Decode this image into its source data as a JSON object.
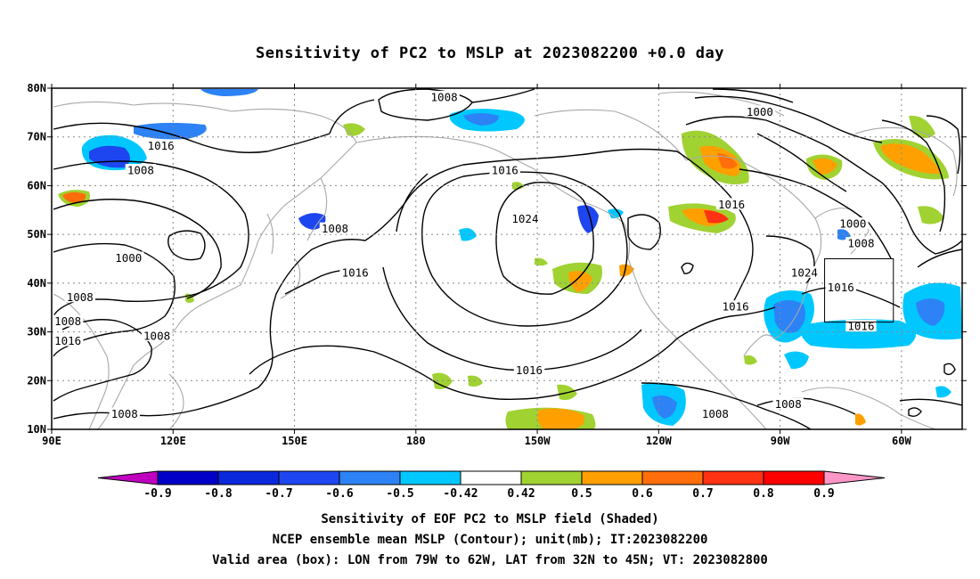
{
  "title": "Sensitivity of PC2 to MSLP at 2023082200 +0.0 day",
  "map": {
    "lon_ticks": [
      "90E",
      "120E",
      "150E",
      "180",
      "150W",
      "120W",
      "90W",
      "60W"
    ],
    "lat_ticks": [
      "80N",
      "70N",
      "60N",
      "50N",
      "40N",
      "30N",
      "20N",
      "10N"
    ],
    "valid_box": {
      "lon_w": -79,
      "lon_e": -62,
      "lat_s": 32,
      "lat_n": 45
    },
    "contour_color": "#000000",
    "coastline_color": "#a8a8a8",
    "grid_color": "#888888",
    "contour_labels": [
      {
        "text": "1008",
        "lon": -173,
        "lat": 78
      },
      {
        "text": "1000",
        "lon": -95,
        "lat": 75
      },
      {
        "text": "1016",
        "lon": 117,
        "lat": 68
      },
      {
        "text": "1008",
        "lon": 112,
        "lat": 63
      },
      {
        "text": "1016",
        "lon": -158,
        "lat": 63
      },
      {
        "text": "1016",
        "lon": -102,
        "lat": 56
      },
      {
        "text": "1024",
        "lon": -153,
        "lat": 53
      },
      {
        "text": "1000",
        "lon": -72,
        "lat": 52
      },
      {
        "text": "1008",
        "lon": 160,
        "lat": 51
      },
      {
        "text": "1008",
        "lon": -70,
        "lat": 48
      },
      {
        "text": "1000",
        "lon": 109,
        "lat": 45
      },
      {
        "text": "1024",
        "lon": -84,
        "lat": 42
      },
      {
        "text": "1016",
        "lon": 165,
        "lat": 42
      },
      {
        "text": "1016",
        "lon": -75,
        "lat": 39
      },
      {
        "text": "1008",
        "lon": 97,
        "lat": 37
      },
      {
        "text": "1016",
        "lon": -101,
        "lat": 35
      },
      {
        "text": "1008",
        "lon": 94,
        "lat": 32
      },
      {
        "text": "1016",
        "lon": -70,
        "lat": 31
      },
      {
        "text": "1008",
        "lon": 116,
        "lat": 29
      },
      {
        "text": "1016",
        "lon": 94,
        "lat": 28
      },
      {
        "text": "1016",
        "lon": -152,
        "lat": 22
      },
      {
        "text": "1008",
        "lon": -106,
        "lat": 13
      },
      {
        "text": "1008",
        "lon": -88,
        "lat": 15
      },
      {
        "text": "1008",
        "lon": 108,
        "lat": 13
      }
    ]
  },
  "colorbar": {
    "labels": [
      "-0.9",
      "-0.8",
      "-0.7",
      "-0.6",
      "-0.5",
      "-0.42",
      "0.42",
      "0.5",
      "0.6",
      "0.7",
      "0.8",
      "0.9"
    ],
    "colors": [
      "#bf00bf",
      "#0000c8",
      "#0a28dc",
      "#1e46f0",
      "#2d82f5",
      "#00c8ff",
      "#ffffff",
      "#a0d232",
      "#ffa000",
      "#ff6e0a",
      "#ff3214",
      "#ff0000",
      "#ff96c8"
    ]
  },
  "footer": {
    "line1": "Sensitivity of EOF PC2 to MSLP field (Shaded)",
    "line2": "NCEP ensemble mean MSLP (Contour); unit(mb); IT:2023082200",
    "line3": "Valid area (box): LON from 79W to 62W, LAT from 32N to 45N; VT: 2023082800"
  }
}
